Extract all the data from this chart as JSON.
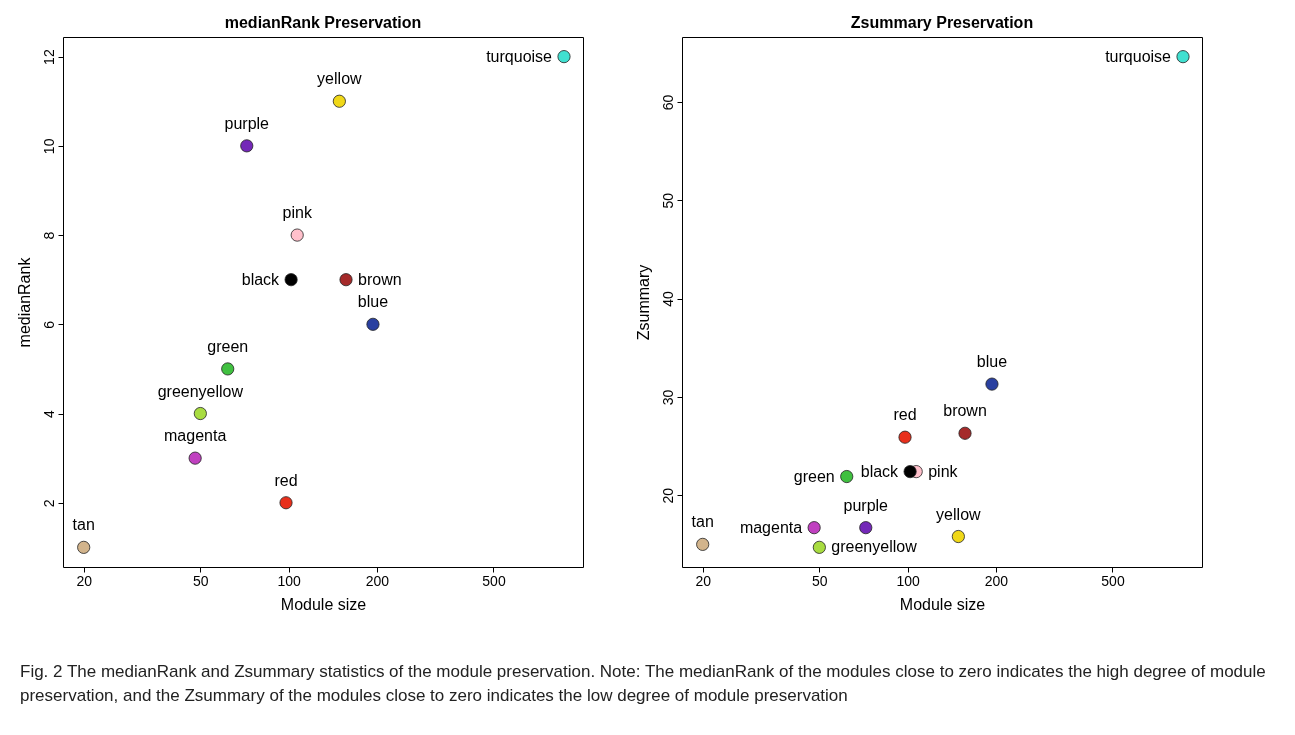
{
  "chart_data": [
    {
      "type": "scatter",
      "title": "medianRank Preservation",
      "xlabel": "Module size",
      "ylabel": "medianRank",
      "log": "x",
      "grid": false,
      "legend": false,
      "marker": "circle",
      "xlim": [
        17,
        1010
      ],
      "xticks": [
        20,
        50,
        100,
        200,
        500
      ],
      "ylim": [
        0.56,
        12.44
      ],
      "yticks": [
        2,
        4,
        6,
        8,
        10,
        12
      ],
      "series": [
        {
          "name": "turquoise",
          "color": "#40e0d0",
          "x": [
            870
          ],
          "values": [
            12
          ]
        },
        {
          "name": "yellow",
          "color": "#f0d818",
          "x": [
            149
          ],
          "values": [
            11
          ]
        },
        {
          "name": "purple",
          "color": "#7428b8",
          "x": [
            72
          ],
          "values": [
            10
          ]
        },
        {
          "name": "pink",
          "color": "#ffc0cb",
          "x": [
            107
          ],
          "values": [
            8
          ]
        },
        {
          "name": "black",
          "color": "#000000",
          "x": [
            102
          ],
          "values": [
            7
          ]
        },
        {
          "name": "brown",
          "color": "#a52a2a",
          "x": [
            157
          ],
          "values": [
            7
          ]
        },
        {
          "name": "blue",
          "color": "#2a40a0",
          "x": [
            194
          ],
          "values": [
            6
          ]
        },
        {
          "name": "green",
          "color": "#40c040",
          "x": [
            62
          ],
          "values": [
            5
          ]
        },
        {
          "name": "greenyellow",
          "color": "#a8dc40",
          "x": [
            50
          ],
          "values": [
            4
          ]
        },
        {
          "name": "magenta",
          "color": "#c040c0",
          "x": [
            48
          ],
          "values": [
            3
          ]
        },
        {
          "name": "red",
          "color": "#e8301c",
          "x": [
            98
          ],
          "values": [
            2
          ]
        },
        {
          "name": "tan",
          "color": "#d2b48c",
          "x": [
            20
          ],
          "values": [
            1
          ]
        }
      ]
    },
    {
      "type": "scatter",
      "title": "Zsummary Preservation",
      "xlabel": "Module size",
      "ylabel": "Zsummary",
      "log": "x",
      "grid": false,
      "legend": false,
      "marker": "circle",
      "xlim": [
        17,
        1010
      ],
      "xticks": [
        20,
        50,
        100,
        200,
        500
      ],
      "ylim": [
        12.7,
        66.6
      ],
      "yticks": [
        20,
        30,
        40,
        50,
        60
      ],
      "annotations": [
        "Fig. 2 The medianRank and Zsummary statistics of the module preservation. Note: The medianRank of the modules close to zero indicates the high degree of module preservation, and the Zsummary of the modules close to zero indicates the low degree of module preservation"
      ],
      "series": [
        {
          "name": "turquoise",
          "color": "#40e0d0",
          "x": [
            870
          ],
          "values": [
            64.6
          ]
        },
        {
          "name": "yellow",
          "color": "#f0d818",
          "x": [
            149
          ],
          "values": [
            15.8
          ]
        },
        {
          "name": "purple",
          "color": "#7428b8",
          "x": [
            72
          ],
          "values": [
            16.7
          ]
        },
        {
          "name": "pink",
          "color": "#ffc0cb",
          "x": [
            107
          ],
          "values": [
            22.4
          ]
        },
        {
          "name": "black",
          "color": "#000000",
          "x": [
            102
          ],
          "values": [
            22.4
          ]
        },
        {
          "name": "brown",
          "color": "#a52a2a",
          "x": [
            157
          ],
          "values": [
            26.3
          ]
        },
        {
          "name": "blue",
          "color": "#2a40a0",
          "x": [
            194
          ],
          "values": [
            31.3
          ]
        },
        {
          "name": "green",
          "color": "#40c040",
          "x": [
            62
          ],
          "values": [
            21.9
          ]
        },
        {
          "name": "greenyellow",
          "color": "#a8dc40",
          "x": [
            50
          ],
          "values": [
            14.7
          ]
        },
        {
          "name": "magenta",
          "color": "#c040c0",
          "x": [
            48
          ],
          "values": [
            16.7
          ]
        },
        {
          "name": "red",
          "color": "#e8301c",
          "x": [
            98
          ],
          "values": [
            25.9
          ]
        },
        {
          "name": "tan",
          "color": "#d2b48c",
          "x": [
            20
          ],
          "values": [
            15.0
          ]
        }
      ]
    }
  ]
}
